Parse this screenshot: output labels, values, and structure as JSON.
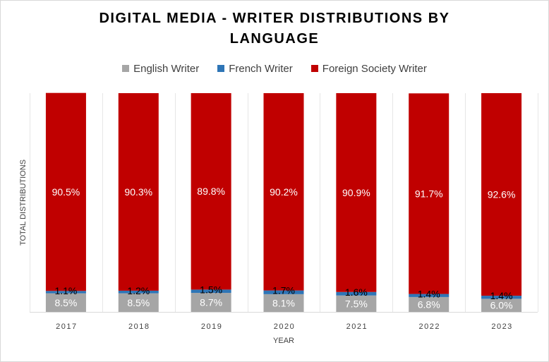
{
  "chart_data": {
    "type": "bar",
    "stacked": true,
    "title": "DIGITAL MEDIA - WRITER DISTRIBUTIONS BY LANGUAGE",
    "title_lines": [
      "DIGITAL MEDIA - WRITER DISTRIBUTIONS  BY",
      "LANGUAGE"
    ],
    "xlabel": "YEAR",
    "ylabel": "TOTAL DISTRIBUTIONS",
    "categories": [
      "2017",
      "2018",
      "2019",
      "2020",
      "2021",
      "2022",
      "2023"
    ],
    "ylim": [
      0,
      100
    ],
    "grid": true,
    "legend_position": "top",
    "series": [
      {
        "name": "English Writer",
        "color": "#a6a6a6",
        "label_color": "#ffffff",
        "values": [
          8.5,
          8.5,
          8.7,
          8.1,
          7.5,
          6.8,
          6.0
        ],
        "labels": [
          "8.5%",
          "8.5%",
          "8.7%",
          "8.1%",
          "7.5%",
          "6.8%",
          "6.0%"
        ]
      },
      {
        "name": "French Writer",
        "color": "#2e75b6",
        "label_color": "#000000",
        "values": [
          1.1,
          1.2,
          1.5,
          1.7,
          1.6,
          1.4,
          1.4
        ],
        "labels": [
          "1.1%",
          "1.2%",
          "1.5%",
          "1.7%",
          "1.6%",
          "1.4%",
          "1.4%"
        ]
      },
      {
        "name": "Foreign Society Writer",
        "color": "#c00000",
        "label_color": "#ffffff",
        "values": [
          90.5,
          90.3,
          89.8,
          90.2,
          90.9,
          91.7,
          92.6
        ],
        "labels": [
          "90.5%",
          "90.3%",
          "89.8%",
          "90.2%",
          "90.9%",
          "91.7%",
          "92.6%"
        ]
      }
    ]
  }
}
